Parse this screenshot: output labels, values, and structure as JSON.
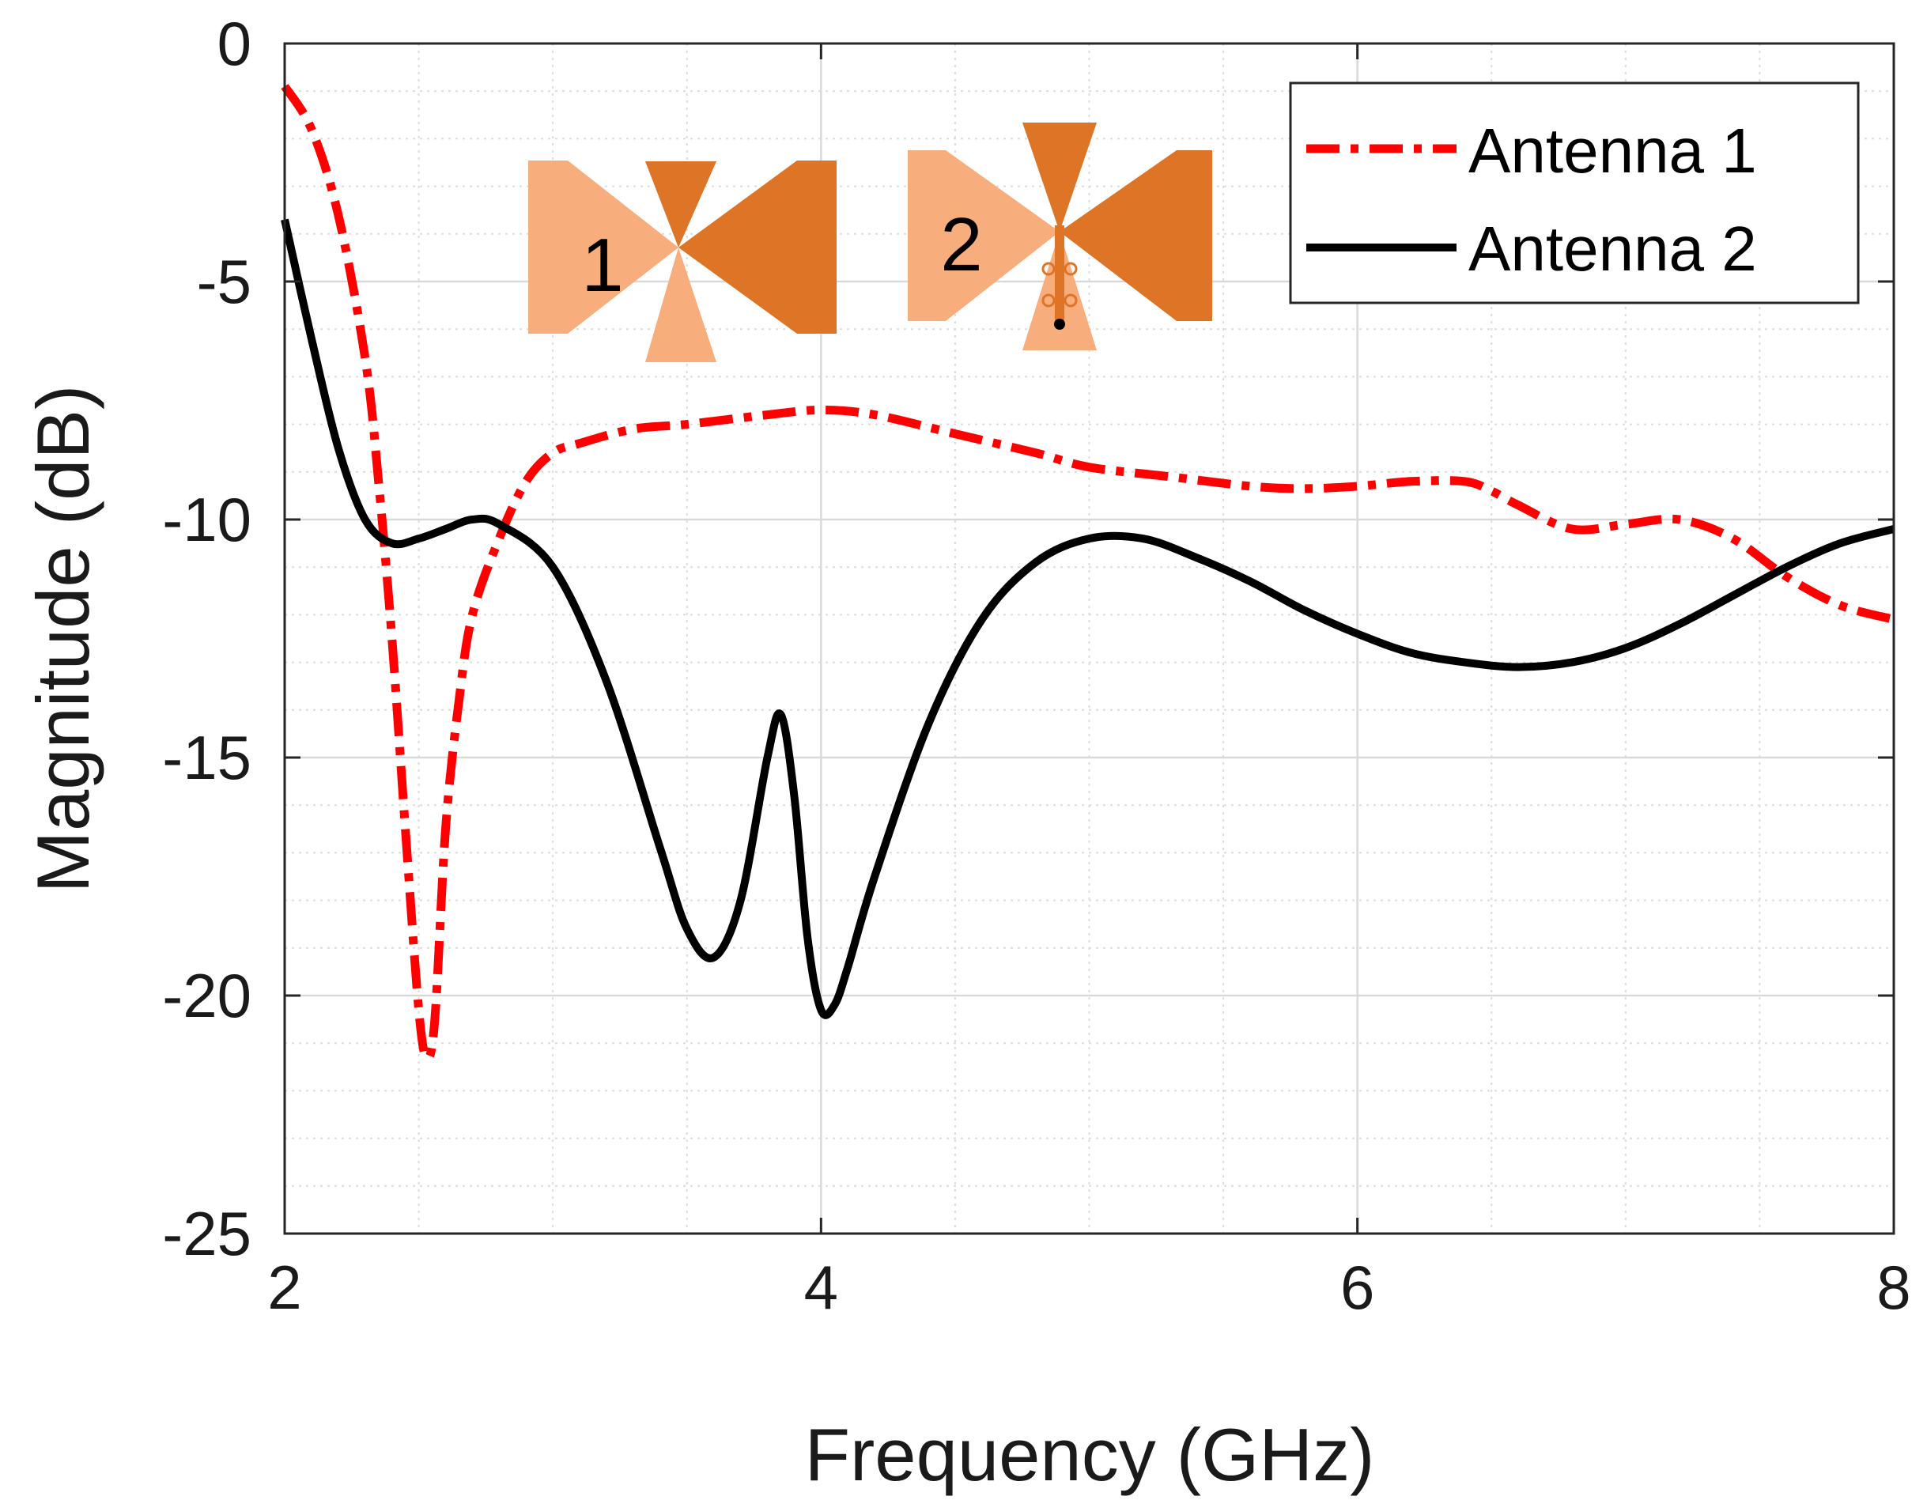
{
  "chart_data": {
    "type": "line",
    "xlabel": "Frequency (GHz)",
    "ylabel": "Magnitude (dB)",
    "xlim": [
      2,
      8
    ],
    "ylim": [
      -25,
      0
    ],
    "xticks": [
      2,
      4,
      6,
      8
    ],
    "yticks": [
      0,
      -5,
      -10,
      -15,
      -20,
      -25
    ],
    "xtick_labels": [
      "2",
      "4",
      "6",
      "8"
    ],
    "ytick_labels": [
      "0",
      "-5",
      "-10",
      "-15",
      "-20",
      "-25"
    ],
    "grid": true,
    "minor_grid": true,
    "legend_position": "top-right",
    "series": [
      {
        "name": "Antenna 1",
        "style": "dash-dot",
        "color": "#ff0000",
        "x": [
          2.0,
          2.1,
          2.2,
          2.3,
          2.35,
          2.4,
          2.45,
          2.5,
          2.53,
          2.56,
          2.6,
          2.65,
          2.7,
          2.8,
          2.9,
          3.0,
          3.1,
          3.3,
          3.5,
          3.8,
          4.0,
          4.2,
          4.5,
          4.8,
          5.0,
          5.3,
          5.6,
          5.8,
          6.0,
          6.2,
          6.4,
          6.5,
          6.6,
          6.8,
          7.0,
          7.2,
          7.4,
          7.6,
          7.8,
          8.0
        ],
        "y": [
          -0.9,
          -1.8,
          -3.6,
          -6.6,
          -9.2,
          -12.5,
          -16.5,
          -20.3,
          -21.3,
          -20.5,
          -16.5,
          -13.8,
          -12.0,
          -10.4,
          -9.2,
          -8.6,
          -8.4,
          -8.1,
          -8.0,
          -7.8,
          -7.7,
          -7.8,
          -8.2,
          -8.6,
          -8.9,
          -9.1,
          -9.3,
          -9.35,
          -9.3,
          -9.2,
          -9.2,
          -9.4,
          -9.7,
          -10.2,
          -10.1,
          -10.0,
          -10.4,
          -11.2,
          -11.8,
          -12.1
        ]
      },
      {
        "name": "Antenna 2",
        "style": "solid",
        "color": "#000000",
        "x": [
          2.0,
          2.1,
          2.2,
          2.3,
          2.4,
          2.5,
          2.6,
          2.7,
          2.8,
          3.0,
          3.2,
          3.4,
          3.5,
          3.6,
          3.7,
          3.8,
          3.85,
          3.9,
          3.95,
          4.0,
          4.05,
          4.1,
          4.2,
          4.4,
          4.6,
          4.8,
          5.0,
          5.2,
          5.4,
          5.6,
          5.8,
          6.0,
          6.2,
          6.4,
          6.6,
          6.8,
          7.0,
          7.2,
          7.4,
          7.6,
          7.8,
          8.0
        ],
        "y": [
          -3.7,
          -6.2,
          -8.5,
          -10.0,
          -10.5,
          -10.4,
          -10.2,
          -10.0,
          -10.1,
          -11.0,
          -13.4,
          -16.9,
          -18.6,
          -19.2,
          -18.0,
          -15.0,
          -14.1,
          -15.8,
          -18.8,
          -20.3,
          -20.2,
          -19.4,
          -17.5,
          -14.3,
          -12.1,
          -10.9,
          -10.4,
          -10.4,
          -10.8,
          -11.3,
          -11.9,
          -12.4,
          -12.8,
          -13.0,
          -13.1,
          -13.0,
          -12.7,
          -12.2,
          -11.6,
          -11.0,
          -10.5,
          -10.2
        ]
      }
    ],
    "inset_labels": [
      "1",
      "2"
    ]
  }
}
